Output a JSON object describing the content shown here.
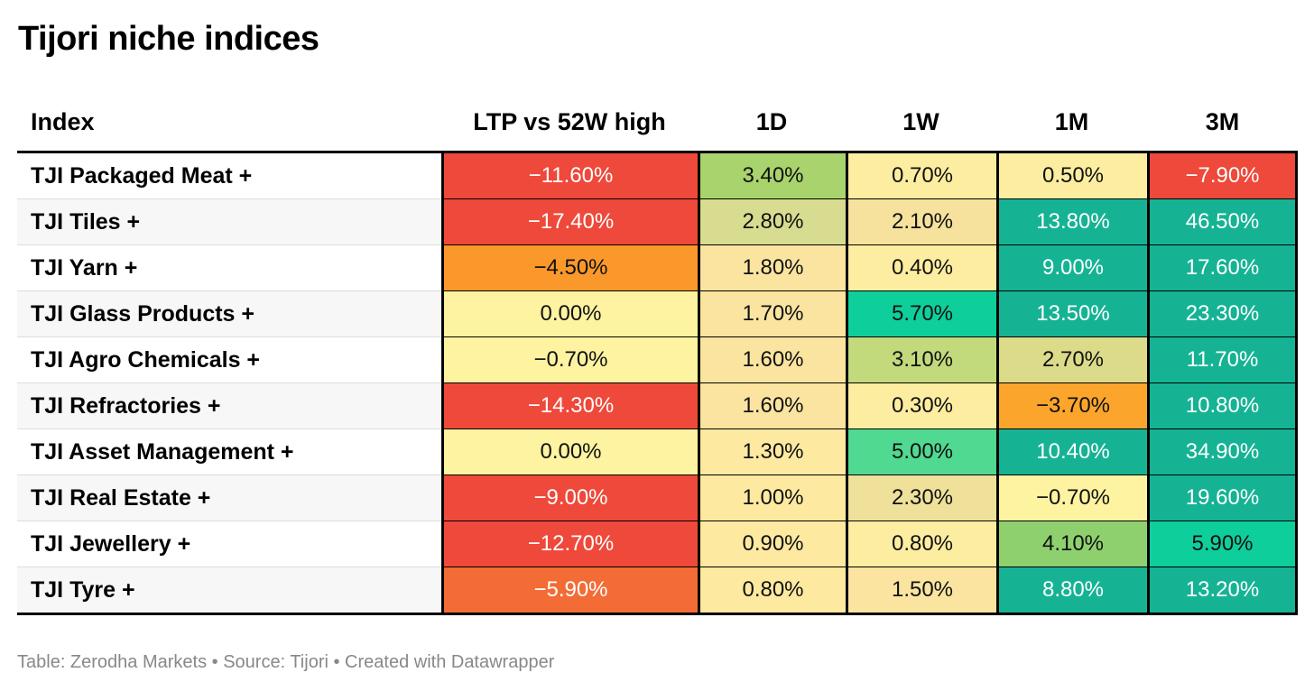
{
  "title": "Tijori niche indices",
  "footer": "Table: Zerodha Markets • Source: Tijori • Created with Datawrapper",
  "chart_data": {
    "type": "table",
    "title": "Tijori niche indices",
    "columns": [
      "Index",
      "LTP vs 52W high",
      "1D",
      "1W",
      "1M",
      "3M"
    ],
    "rows": [
      {
        "name": "TJI Packaged Meat +",
        "cells": [
          {
            "label": "−11.60%",
            "value": -11.6,
            "color": "#ee493a",
            "text": "light"
          },
          {
            "label": "3.40%",
            "value": 3.4,
            "color": "#a9d36c",
            "text": "dark"
          },
          {
            "label": "0.70%",
            "value": 0.7,
            "color": "#fdeda0",
            "text": "dark"
          },
          {
            "label": "0.50%",
            "value": 0.5,
            "color": "#fdeda0",
            "text": "dark"
          },
          {
            "label": "−7.90%",
            "value": -7.9,
            "color": "#ee493a",
            "text": "light"
          }
        ]
      },
      {
        "name": "TJI Tiles +",
        "cells": [
          {
            "label": "−17.40%",
            "value": -17.4,
            "color": "#ee493a",
            "text": "light"
          },
          {
            "label": "2.80%",
            "value": 2.8,
            "color": "#d7dc90",
            "text": "dark"
          },
          {
            "label": "2.10%",
            "value": 2.1,
            "color": "#f6e29c",
            "text": "dark"
          },
          {
            "label": "13.80%",
            "value": 13.8,
            "color": "#15b394",
            "text": "light"
          },
          {
            "label": "46.50%",
            "value": 46.5,
            "color": "#15b394",
            "text": "light"
          }
        ]
      },
      {
        "name": "TJI Yarn +",
        "cells": [
          {
            "label": "−4.50%",
            "value": -4.5,
            "color": "#fb982c",
            "text": "dark"
          },
          {
            "label": "1.80%",
            "value": 1.8,
            "color": "#fbe4a0",
            "text": "dark"
          },
          {
            "label": "0.40%",
            "value": 0.4,
            "color": "#fdeda0",
            "text": "dark"
          },
          {
            "label": "9.00%",
            "value": 9.0,
            "color": "#15b394",
            "text": "light"
          },
          {
            "label": "17.60%",
            "value": 17.6,
            "color": "#15b394",
            "text": "light"
          }
        ]
      },
      {
        "name": "TJI Glass Products +",
        "cells": [
          {
            "label": "0.00%",
            "value": 0.0,
            "color": "#fdf3a0",
            "text": "dark"
          },
          {
            "label": "1.70%",
            "value": 1.7,
            "color": "#fbe4a0",
            "text": "dark"
          },
          {
            "label": "5.70%",
            "value": 5.7,
            "color": "#0ecf9c",
            "text": "dark"
          },
          {
            "label": "13.50%",
            "value": 13.5,
            "color": "#15b394",
            "text": "light"
          },
          {
            "label": "23.30%",
            "value": 23.3,
            "color": "#15b394",
            "text": "light"
          }
        ]
      },
      {
        "name": "TJI Agro Chemicals +",
        "cells": [
          {
            "label": "−0.70%",
            "value": -0.7,
            "color": "#fdf3a0",
            "text": "dark"
          },
          {
            "label": "1.60%",
            "value": 1.6,
            "color": "#fbe4a0",
            "text": "dark"
          },
          {
            "label": "3.10%",
            "value": 3.1,
            "color": "#c2d97c",
            "text": "dark"
          },
          {
            "label": "2.70%",
            "value": 2.7,
            "color": "#dbdb8a",
            "text": "dark"
          },
          {
            "label": "11.70%",
            "value": 11.7,
            "color": "#15b394",
            "text": "light"
          }
        ]
      },
      {
        "name": "TJI Refractories +",
        "cells": [
          {
            "label": "−14.30%",
            "value": -14.3,
            "color": "#ee493a",
            "text": "light"
          },
          {
            "label": "1.60%",
            "value": 1.6,
            "color": "#fbe4a0",
            "text": "dark"
          },
          {
            "label": "0.30%",
            "value": 0.3,
            "color": "#fdeda0",
            "text": "dark"
          },
          {
            "label": "−3.70%",
            "value": -3.7,
            "color": "#fca52c",
            "text": "dark"
          },
          {
            "label": "10.80%",
            "value": 10.8,
            "color": "#15b394",
            "text": "light"
          }
        ]
      },
      {
        "name": "TJI Asset Management +",
        "cells": [
          {
            "label": "0.00%",
            "value": 0.0,
            "color": "#fdf3a0",
            "text": "dark"
          },
          {
            "label": "1.30%",
            "value": 1.3,
            "color": "#fde9a0",
            "text": "dark"
          },
          {
            "label": "5.00%",
            "value": 5.0,
            "color": "#50d990",
            "text": "dark"
          },
          {
            "label": "10.40%",
            "value": 10.4,
            "color": "#15b394",
            "text": "light"
          },
          {
            "label": "34.90%",
            "value": 34.9,
            "color": "#15b394",
            "text": "light"
          }
        ]
      },
      {
        "name": "TJI Real Estate +",
        "cells": [
          {
            "label": "−9.00%",
            "value": -9.0,
            "color": "#ee493a",
            "text": "light"
          },
          {
            "label": "1.00%",
            "value": 1.0,
            "color": "#fde9a0",
            "text": "dark"
          },
          {
            "label": "2.30%",
            "value": 2.3,
            "color": "#efe19a",
            "text": "dark"
          },
          {
            "label": "−0.70%",
            "value": -0.7,
            "color": "#fdf3a0",
            "text": "dark"
          },
          {
            "label": "19.60%",
            "value": 19.6,
            "color": "#15b394",
            "text": "light"
          }
        ]
      },
      {
        "name": "TJI Jewellery +",
        "cells": [
          {
            "label": "−12.70%",
            "value": -12.7,
            "color": "#ee493a",
            "text": "light"
          },
          {
            "label": "0.90%",
            "value": 0.9,
            "color": "#fde9a0",
            "text": "dark"
          },
          {
            "label": "0.80%",
            "value": 0.8,
            "color": "#fdeda0",
            "text": "dark"
          },
          {
            "label": "4.10%",
            "value": 4.1,
            "color": "#8fd06e",
            "text": "dark"
          },
          {
            "label": "5.90%",
            "value": 5.9,
            "color": "#0ecf9c",
            "text": "dark"
          }
        ]
      },
      {
        "name": "TJI Tyre +",
        "cells": [
          {
            "label": "−5.90%",
            "value": -5.9,
            "color": "#f36c36",
            "text": "light"
          },
          {
            "label": "0.80%",
            "value": 0.8,
            "color": "#fde9a0",
            "text": "dark"
          },
          {
            "label": "1.50%",
            "value": 1.5,
            "color": "#fbe4a0",
            "text": "dark"
          },
          {
            "label": "8.80%",
            "value": 8.8,
            "color": "#15b394",
            "text": "light"
          },
          {
            "label": "13.20%",
            "value": 13.2,
            "color": "#15b394",
            "text": "light"
          }
        ]
      }
    ]
  }
}
